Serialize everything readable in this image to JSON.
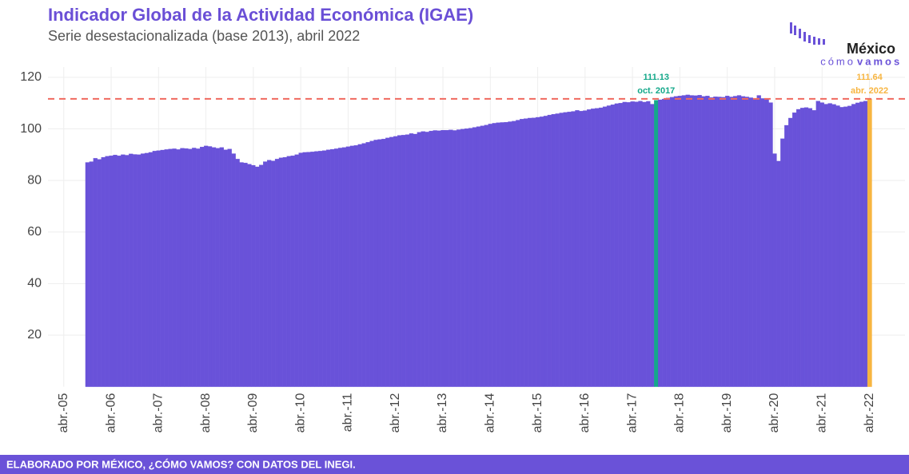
{
  "chart_data": {
    "type": "bar",
    "title": "Indicador Global de la Actividad Económica (IGAE)",
    "subtitle": "Serie desestacionalizada (base 2013), abril 2022",
    "color": "#6952d9",
    "x_start": "2005-10",
    "values": [
      87.0,
      87.3,
      88.6,
      88.2,
      89.0,
      89.4,
      89.6,
      89.9,
      89.6,
      90.0,
      89.8,
      90.3,
      90.1,
      90.0,
      90.4,
      90.6,
      90.9,
      91.4,
      91.6,
      91.8,
      92.0,
      92.2,
      92.3,
      92.0,
      92.5,
      92.4,
      92.2,
      92.6,
      92.3,
      93.0,
      93.4,
      93.2,
      92.8,
      92.5,
      92.8,
      91.9,
      92.2,
      90.4,
      88.3,
      87.0,
      86.8,
      86.3,
      85.9,
      85.3,
      86.0,
      87.3,
      87.9,
      87.6,
      88.3,
      88.8,
      89.0,
      89.4,
      89.6,
      90.0,
      90.7,
      90.9,
      91.0,
      91.1,
      91.3,
      91.4,
      91.6,
      91.9,
      92.1,
      92.3,
      92.6,
      92.8,
      93.1,
      93.4,
      93.6,
      94.0,
      94.4,
      94.8,
      95.3,
      95.7,
      95.9,
      96.1,
      96.5,
      96.8,
      97.1,
      97.5,
      97.6,
      97.8,
      98.2,
      98.0,
      98.7,
      99.0,
      98.8,
      99.2,
      99.4,
      99.3,
      99.5,
      99.5,
      99.6,
      99.4,
      99.7,
      99.9,
      100.1,
      100.3,
      100.6,
      100.9,
      101.2,
      101.5,
      101.9,
      102.2,
      102.4,
      102.5,
      102.6,
      102.8,
      103.0,
      103.4,
      103.8,
      104.0,
      104.2,
      104.3,
      104.5,
      104.7,
      105.0,
      105.4,
      105.7,
      105.9,
      106.2,
      106.4,
      106.6,
      106.8,
      107.2,
      106.9,
      107.1,
      107.5,
      107.8,
      108.0,
      108.2,
      108.6,
      109.0,
      109.4,
      109.8,
      110.0,
      110.4,
      110.3,
      110.6,
      110.5,
      110.8,
      110.4,
      110.7,
      109.6,
      111.13,
      111.3,
      111.6,
      112.0,
      112.3,
      112.6,
      112.8,
      113.0,
      113.2,
      113.0,
      112.9,
      113.1,
      112.6,
      112.8,
      112.2,
      112.5,
      112.4,
      112.3,
      112.8,
      112.4,
      112.7,
      113.0,
      112.6,
      112.4,
      112.1,
      111.8,
      113.0,
      111.8,
      111.5,
      110.2,
      90.4,
      87.5,
      96.2,
      101.4,
      104.2,
      106.3,
      107.6,
      108.1,
      108.3,
      108.0,
      107.2,
      110.8,
      110.2,
      109.6,
      109.9,
      109.5,
      109.0,
      108.4,
      108.6,
      108.9,
      109.6,
      110.1,
      110.5,
      110.8,
      111.64
    ],
    "xlim": [
      "2004-12",
      "2023-01"
    ],
    "xticks": [
      {
        "value": "2005-04",
        "label": "abr.-05"
      },
      {
        "value": "2006-04",
        "label": "abr.-06"
      },
      {
        "value": "2007-04",
        "label": "abr.-07"
      },
      {
        "value": "2008-04",
        "label": "abr.-08"
      },
      {
        "value": "2009-04",
        "label": "abr.-09"
      },
      {
        "value": "2010-04",
        "label": "abr.-10"
      },
      {
        "value": "2011-04",
        "label": "abr.-11"
      },
      {
        "value": "2012-04",
        "label": "abr.-12"
      },
      {
        "value": "2013-04",
        "label": "abr.-13"
      },
      {
        "value": "2014-04",
        "label": "abr.-14"
      },
      {
        "value": "2015-04",
        "label": "abr.-15"
      },
      {
        "value": "2016-04",
        "label": "abr.-16"
      },
      {
        "value": "2017-04",
        "label": "abr.-17"
      },
      {
        "value": "2018-04",
        "label": "abr.-18"
      },
      {
        "value": "2019-04",
        "label": "abr.-19"
      },
      {
        "value": "2020-04",
        "label": "abr.-20"
      },
      {
        "value": "2021-04",
        "label": "abr.-21"
      },
      {
        "value": "2022-04",
        "label": "abr.-22"
      }
    ],
    "ylim": [
      0,
      124
    ],
    "yticks": [
      20,
      40,
      60,
      80,
      100,
      120
    ],
    "grid": true,
    "reference_line": {
      "value": 111.64,
      "color": "#f0695f"
    },
    "annotations": [
      {
        "x": "2017-10",
        "label": "111.13",
        "date_label": "oct. 2017",
        "color": "#14a88a"
      },
      {
        "x": "2022-04",
        "label": "111.64",
        "date_label": "abr. 2022",
        "color": "#f7b541"
      }
    ],
    "logo": {
      "name": "México",
      "tagline_a": "cómo",
      "tagline_b": "vamos"
    },
    "footer": "ELABORADO POR MÉXICO, ¿CÓMO VAMOS? CON DATOS DEL INEGI."
  }
}
